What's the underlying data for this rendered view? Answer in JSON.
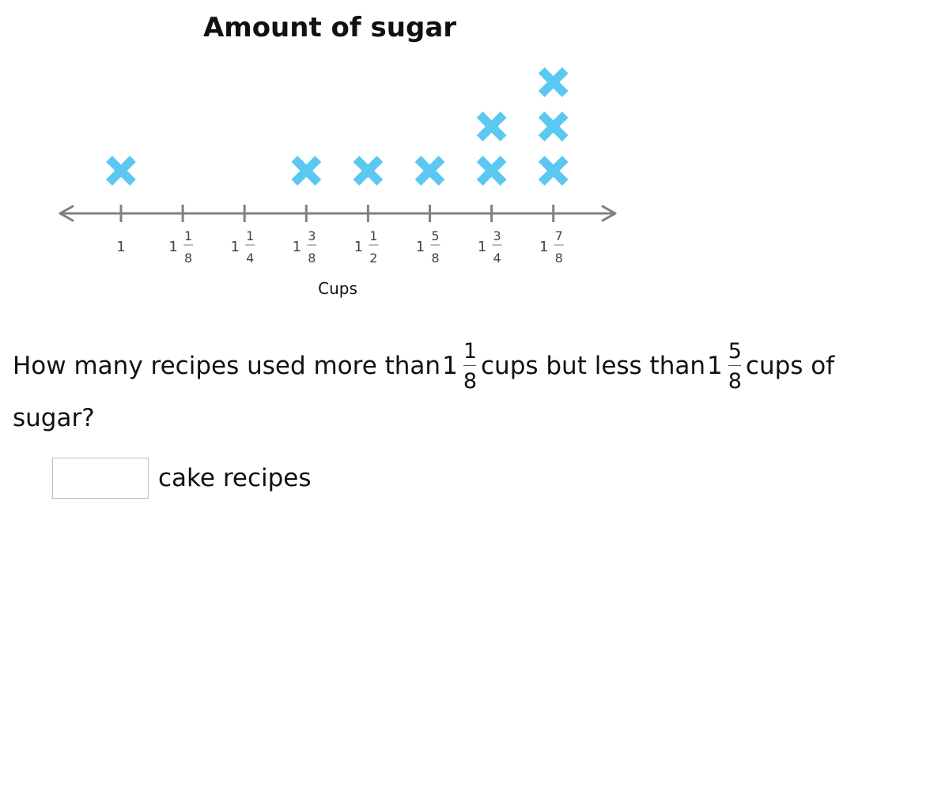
{
  "chart_data": {
    "type": "dot_plot",
    "title": "Amount of sugar",
    "xlabel": "Cups",
    "marker": "✖",
    "marker_color": "#5BC8F2",
    "axis_color": "#808080",
    "ticks": [
      {
        "value": 1.0,
        "whole": "1",
        "num": "",
        "den": ""
      },
      {
        "value": 1.125,
        "whole": "1",
        "num": "1",
        "den": "8"
      },
      {
        "value": 1.25,
        "whole": "1",
        "num": "1",
        "den": "4"
      },
      {
        "value": 1.375,
        "whole": "1",
        "num": "3",
        "den": "8"
      },
      {
        "value": 1.5,
        "whole": "1",
        "num": "1",
        "den": "2"
      },
      {
        "value": 1.625,
        "whole": "1",
        "num": "5",
        "den": "8"
      },
      {
        "value": 1.75,
        "whole": "1",
        "num": "3",
        "den": "4"
      },
      {
        "value": 1.875,
        "whole": "1",
        "num": "7",
        "den": "8"
      }
    ],
    "counts": [
      1,
      0,
      0,
      1,
      1,
      1,
      2,
      3
    ]
  },
  "question": {
    "part1": "How many recipes used more than",
    "frac1": {
      "whole": "1",
      "num": "1",
      "den": "8"
    },
    "part2": "cups but less than",
    "frac2": {
      "whole": "1",
      "num": "5",
      "den": "8"
    },
    "part3": "cups of",
    "line2": "sugar?"
  },
  "answer": {
    "value": "",
    "unit": "cake recipes"
  }
}
